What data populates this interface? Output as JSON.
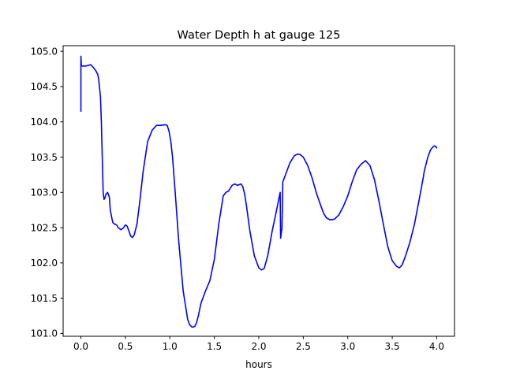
{
  "chart_data": {
    "type": "line",
    "title": "Water Depth h at gauge 125",
    "xlabel": "hours",
    "ylabel": "",
    "xlim": [
      -0.2,
      4.2
    ],
    "ylim": [
      100.96,
      105.08
    ],
    "xticks": [
      0.0,
      0.5,
      1.0,
      1.5,
      2.0,
      2.5,
      3.0,
      3.5,
      4.0
    ],
    "xtick_labels": [
      "0.0",
      "0.5",
      "1.0",
      "1.5",
      "2.0",
      "2.5",
      "3.0",
      "3.5",
      "4.0"
    ],
    "yticks": [
      101.0,
      101.5,
      102.0,
      102.5,
      103.0,
      103.5,
      104.0,
      104.5,
      105.0
    ],
    "ytick_labels": [
      "101.0",
      "101.5",
      "102.0",
      "102.5",
      "103.0",
      "103.5",
      "104.0",
      "104.5",
      "105.0"
    ],
    "grid": false,
    "legend": "none",
    "series": [
      {
        "color": "#0000ff",
        "x": [
          0.0,
          0.0,
          0.005,
          0.0,
          0.0,
          0.02,
          0.05,
          0.08,
          0.11,
          0.14,
          0.17,
          0.19,
          0.2,
          0.22,
          0.23,
          0.24,
          0.25,
          0.26,
          0.27,
          0.28,
          0.3,
          0.32,
          0.33,
          0.35,
          0.36,
          0.37,
          0.38,
          0.4,
          0.42,
          0.45,
          0.48,
          0.5,
          0.52,
          0.54,
          0.56,
          0.58,
          0.6,
          0.63,
          0.66,
          0.7,
          0.75,
          0.8,
          0.85,
          0.9,
          0.95,
          0.97,
          0.99,
          1.01,
          1.03,
          1.06,
          1.1,
          1.15,
          1.2,
          1.22,
          1.24,
          1.25,
          1.26,
          1.28,
          1.3,
          1.32,
          1.35,
          1.4,
          1.45,
          1.5,
          1.55,
          1.6,
          1.63,
          1.66,
          1.7,
          1.73,
          1.76,
          1.8,
          1.82,
          1.84,
          1.86,
          1.9,
          1.95,
          2.0,
          2.03,
          2.06,
          2.1,
          2.15,
          2.2,
          2.24,
          2.245,
          2.25,
          2.255,
          2.26,
          2.27,
          2.3,
          2.35,
          2.4,
          2.43,
          2.46,
          2.5,
          2.55,
          2.6,
          2.65,
          2.7,
          2.73,
          2.76,
          2.8,
          2.85,
          2.9,
          2.95,
          3.0,
          3.05,
          3.1,
          3.15,
          3.2,
          3.25,
          3.3,
          3.35,
          3.4,
          3.45,
          3.5,
          3.55,
          3.58,
          3.61,
          3.65,
          3.7,
          3.75,
          3.8,
          3.83,
          3.85,
          3.86,
          3.9,
          3.93,
          3.96,
          3.98,
          4.0
        ],
        "y": [
          104.15,
          104.93,
          104.8,
          104.79,
          104.8,
          104.79,
          104.79,
          104.8,
          104.81,
          104.77,
          104.72,
          104.67,
          104.6,
          104.35,
          104.0,
          103.5,
          103.0,
          102.9,
          102.92,
          102.97,
          103.0,
          102.93,
          102.75,
          102.62,
          102.57,
          102.56,
          102.55,
          102.54,
          102.5,
          102.47,
          102.5,
          102.54,
          102.52,
          102.45,
          102.38,
          102.36,
          102.4,
          102.55,
          102.85,
          103.3,
          103.72,
          103.88,
          103.95,
          103.95,
          103.96,
          103.95,
          103.87,
          103.73,
          103.5,
          103.0,
          102.3,
          101.6,
          101.2,
          101.13,
          101.1,
          101.09,
          101.09,
          101.1,
          101.15,
          101.25,
          101.43,
          101.6,
          101.75,
          102.05,
          102.55,
          102.95,
          103.0,
          103.02,
          103.1,
          103.12,
          103.1,
          103.12,
          103.08,
          102.98,
          102.82,
          102.45,
          102.1,
          101.93,
          101.9,
          101.92,
          102.1,
          102.45,
          102.75,
          103.0,
          102.35,
          102.4,
          102.45,
          102.48,
          103.15,
          103.25,
          103.42,
          103.52,
          103.54,
          103.54,
          103.5,
          103.38,
          103.2,
          102.98,
          102.8,
          102.7,
          102.64,
          102.61,
          102.62,
          102.68,
          102.8,
          102.95,
          103.15,
          103.32,
          103.4,
          103.45,
          103.38,
          103.18,
          102.88,
          102.55,
          102.23,
          102.03,
          101.95,
          101.93,
          101.97,
          102.1,
          102.3,
          102.55,
          102.88,
          103.08,
          103.22,
          103.3,
          103.5,
          103.6,
          103.65,
          103.66,
          103.63
        ]
      }
    ]
  }
}
